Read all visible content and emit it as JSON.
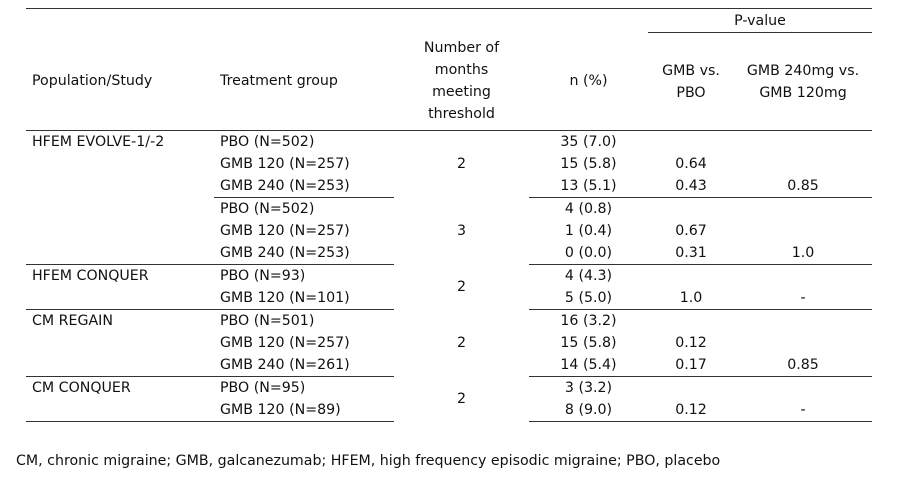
{
  "headers": {
    "population": "Population/Study",
    "treatment": "Treatment group",
    "months": [
      "Number of",
      "months",
      "meeting",
      "threshold"
    ],
    "n": "n (%)",
    "pvalue_group": "P-value",
    "vs_pbo": [
      "GMB vs.",
      "PBO"
    ],
    "vs_120": [
      "GMB 240mg vs.",
      "GMB 120mg"
    ]
  },
  "rows": [
    {
      "population": "HFEM EVOLVE-1/-2",
      "treatment": "PBO (N=502)",
      "months": "2",
      "n": "35 (7.0)",
      "p_pbo": "",
      "p_120": ""
    },
    {
      "population": "",
      "treatment": "GMB 120 (N=257)",
      "months": "",
      "n": "15 (5.8)",
      "p_pbo": "0.64",
      "p_120": ""
    },
    {
      "population": "",
      "treatment": "GMB 240 (N=253)",
      "months": "",
      "n": "13 (5.1)",
      "p_pbo": "0.43",
      "p_120": "0.85"
    },
    {
      "population": "",
      "treatment": "PBO (N=502)",
      "months": "3",
      "n": "4 (0.8)",
      "p_pbo": "",
      "p_120": ""
    },
    {
      "population": "",
      "treatment": "GMB 120 (N=257)",
      "months": "",
      "n": "1 (0.4)",
      "p_pbo": "0.67",
      "p_120": ""
    },
    {
      "population": "",
      "treatment": "GMB 240 (N=253)",
      "months": "",
      "n": "0 (0.0)",
      "p_pbo": "0.31",
      "p_120": "1.0"
    },
    {
      "population": "HFEM CONQUER",
      "treatment": "PBO (N=93)",
      "months": "2",
      "n": "4 (4.3)",
      "p_pbo": "",
      "p_120": ""
    },
    {
      "population": "",
      "treatment": "GMB 120 (N=101)",
      "months": "",
      "n": "5 (5.0)",
      "p_pbo": "1.0",
      "p_120": "-"
    },
    {
      "population": "CM REGAIN",
      "treatment": "PBO (N=501)",
      "months": "2",
      "n": "16 (3.2)",
      "p_pbo": "",
      "p_120": ""
    },
    {
      "population": "",
      "treatment": "GMB 120 (N=257)",
      "months": "",
      "n": "15 (5.8)",
      "p_pbo": "0.12",
      "p_120": ""
    },
    {
      "population": "",
      "treatment": "GMB 240 (N=261)",
      "months": "",
      "n": "14 (5.4)",
      "p_pbo": "0.17",
      "p_120": "0.85"
    },
    {
      "population": "CM CONQUER",
      "treatment": "PBO (N=95)",
      "months": "2",
      "n": "3 (3.2)",
      "p_pbo": "",
      "p_120": ""
    },
    {
      "population": "",
      "treatment": "GMB 120 (N=89)",
      "months": "",
      "n": "8 (9.0)",
      "p_pbo": "0.12",
      "p_120": "-"
    }
  ],
  "footnote": "CM, chronic migraine; GMB, galcanezumab; HFEM, high frequency episodic migraine; PBO, placebo"
}
